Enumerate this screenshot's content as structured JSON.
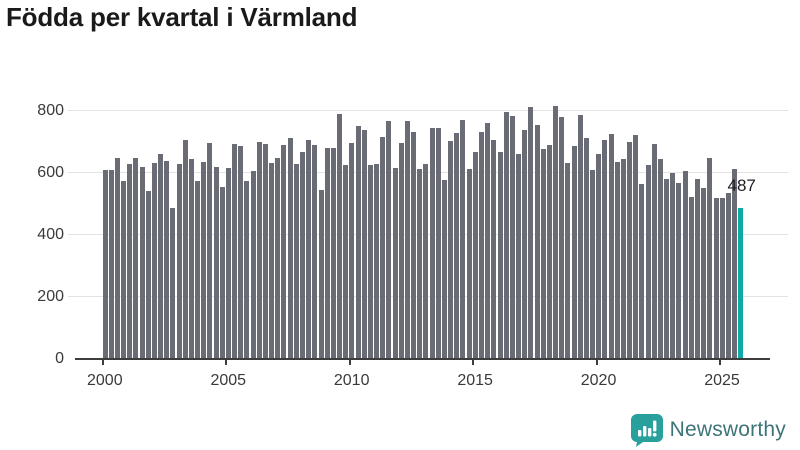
{
  "title": "Födda per kvartal i Värmland",
  "branding": {
    "logo_text": "Newsworthy",
    "logo_icon": "bar-chart-speech-bubble-icon"
  },
  "colors": {
    "bar": "#696c74",
    "highlight": "#0fa9a7",
    "grid": "#e3e3e3",
    "axis": "#3d3d3d",
    "tick_text": "#3a3a3a",
    "title_text": "#1a1a1a",
    "logo_teal": "#2aa09d",
    "logo_text_color": "#3e7478"
  },
  "chart_data": {
    "type": "bar",
    "title": "Födda per kvartal i Värmland",
    "frequency": "quarterly",
    "start_year": 2000,
    "categories_note": "104 consecutive quarters 2000Q1-2025Q4",
    "values": [
      610,
      608,
      647,
      573,
      627,
      647,
      619,
      542,
      630,
      660,
      639,
      485,
      628,
      705,
      643,
      573,
      635,
      695,
      619,
      553,
      615,
      691,
      686,
      573,
      605,
      700,
      693,
      632,
      646,
      690,
      710,
      628,
      665,
      706,
      688,
      544,
      678,
      680,
      788,
      625,
      695,
      750,
      738,
      625,
      627,
      716,
      765,
      614,
      695,
      765,
      732,
      612,
      627,
      743,
      743,
      576,
      703,
      727,
      768,
      611,
      666,
      732,
      759,
      705,
      668,
      794,
      781,
      659,
      738,
      811,
      754,
      676,
      689,
      813,
      779,
      632,
      687,
      786,
      713,
      608,
      660,
      705,
      725,
      635,
      645,
      698,
      722,
      562,
      625,
      692,
      643,
      578,
      600,
      567,
      606,
      522,
      578,
      552,
      646,
      517,
      517,
      533,
      612,
      487
    ],
    "highlight_last": true,
    "last_point": {
      "value": 487,
      "label": "487"
    },
    "xticks": [
      "2000",
      "2005",
      "2010",
      "2015",
      "2020",
      "2025"
    ],
    "yticks": [
      0,
      200,
      400,
      600,
      800
    ],
    "ylim": [
      0,
      830
    ],
    "grid": "horizontal",
    "legend": "none",
    "xlabel": "",
    "ylabel": ""
  }
}
